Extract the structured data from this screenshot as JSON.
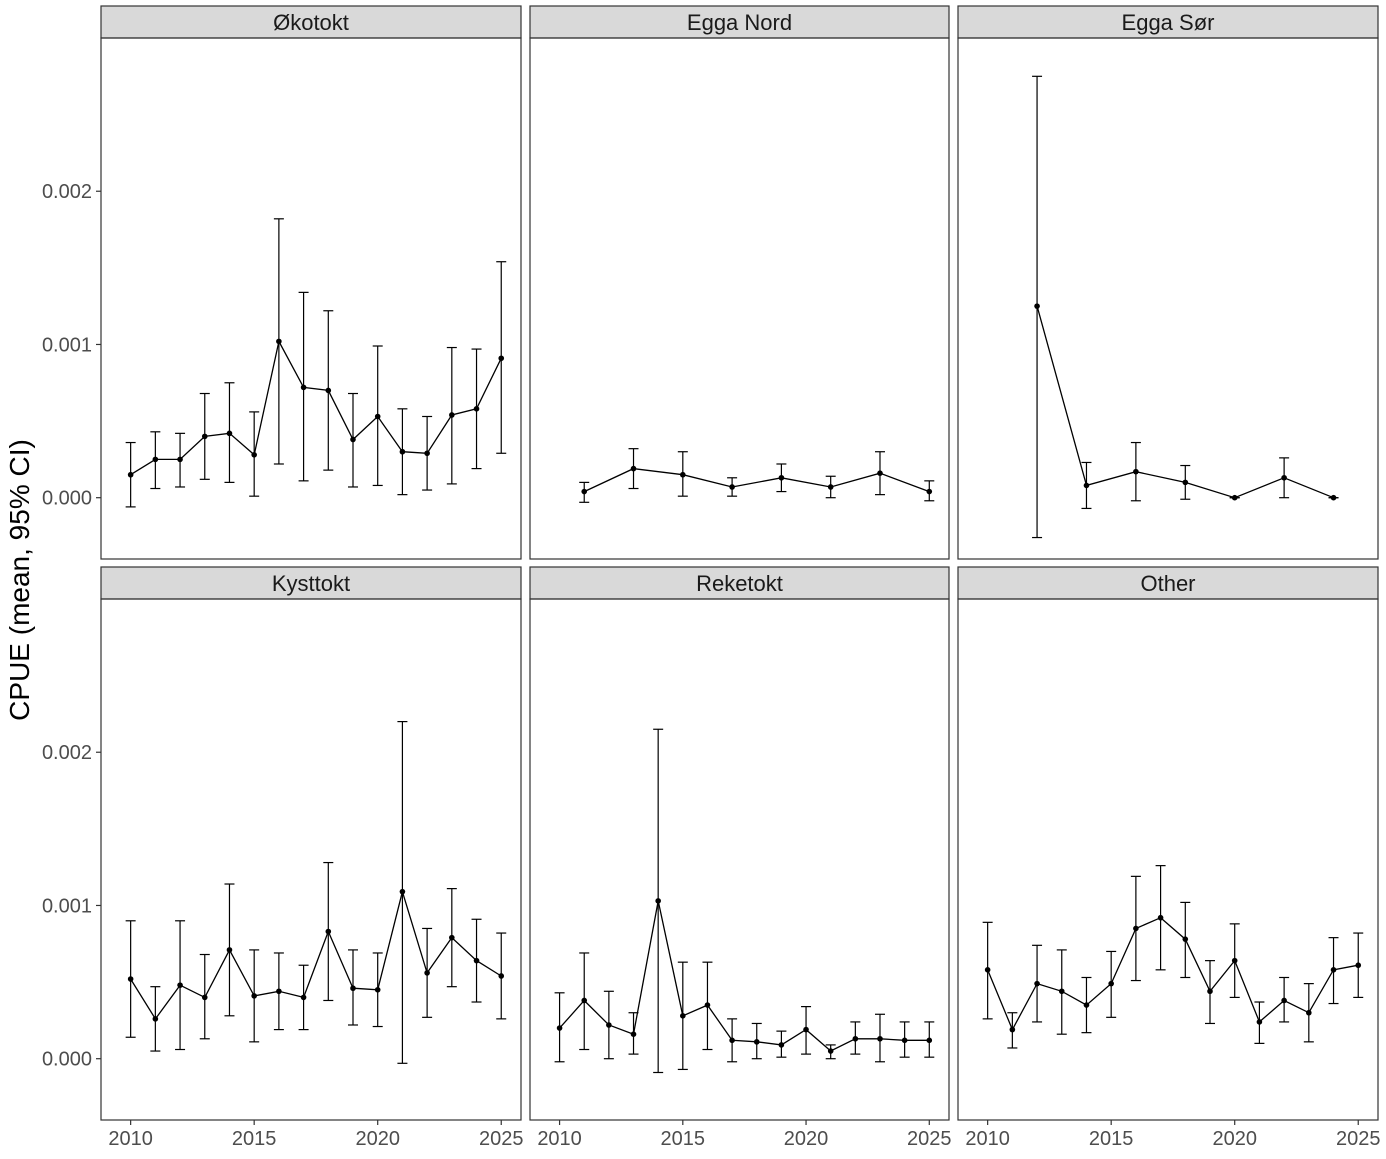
{
  "ylabel": "CPUE (mean, 95% CI)",
  "colors": {
    "strip_fill": "#d9d9d9",
    "frame": "#333333",
    "line": "#000000",
    "tick_text": "#4d4d4d"
  },
  "chart_data": {
    "type": "line",
    "layout": "facet-grid-2x3",
    "error_bars": "95% CI",
    "xlim": [
      2008.8,
      2025.8
    ],
    "ylim": [
      -0.0004,
      0.003
    ],
    "x_ticks": [
      2010,
      2015,
      2020,
      2025
    ],
    "x_tick_labels": [
      "2010",
      "2015",
      "2020",
      "2025"
    ],
    "y_ticks": [
      0,
      0.001,
      0.002
    ],
    "y_tick_labels": [
      "0.000",
      "0.001",
      "0.002"
    ],
    "grid": false,
    "panels": [
      {
        "title": "Økotokt",
        "points": [
          {
            "x": 2010,
            "y": 0.00015,
            "lo": -6e-05,
            "hi": 0.00036
          },
          {
            "x": 2011,
            "y": 0.00025,
            "lo": 6e-05,
            "hi": 0.00043
          },
          {
            "x": 2012,
            "y": 0.00025,
            "lo": 7e-05,
            "hi": 0.00042
          },
          {
            "x": 2013,
            "y": 0.0004,
            "lo": 0.00012,
            "hi": 0.00068
          },
          {
            "x": 2014,
            "y": 0.00042,
            "lo": 0.0001,
            "hi": 0.00075
          },
          {
            "x": 2015,
            "y": 0.00028,
            "lo": 1e-05,
            "hi": 0.00056
          },
          {
            "x": 2016,
            "y": 0.00102,
            "lo": 0.00022,
            "hi": 0.00182
          },
          {
            "x": 2017,
            "y": 0.00072,
            "lo": 0.00011,
            "hi": 0.00134
          },
          {
            "x": 2018,
            "y": 0.0007,
            "lo": 0.00018,
            "hi": 0.00122
          },
          {
            "x": 2019,
            "y": 0.00038,
            "lo": 7e-05,
            "hi": 0.00068
          },
          {
            "x": 2020,
            "y": 0.00053,
            "lo": 8e-05,
            "hi": 0.00099
          },
          {
            "x": 2021,
            "y": 0.0003,
            "lo": 2e-05,
            "hi": 0.00058
          },
          {
            "x": 2022,
            "y": 0.00029,
            "lo": 5e-05,
            "hi": 0.00053
          },
          {
            "x": 2023,
            "y": 0.00054,
            "lo": 9e-05,
            "hi": 0.00098
          },
          {
            "x": 2024,
            "y": 0.00058,
            "lo": 0.00019,
            "hi": 0.00097
          },
          {
            "x": 2025,
            "y": 0.00091,
            "lo": 0.00029,
            "hi": 0.00154
          }
        ]
      },
      {
        "title": "Egga Nord",
        "points": [
          {
            "x": 2011,
            "y": 4e-05,
            "lo": -3e-05,
            "hi": 0.0001
          },
          {
            "x": 2013,
            "y": 0.00019,
            "lo": 6e-05,
            "hi": 0.00032
          },
          {
            "x": 2015,
            "y": 0.00015,
            "lo": 1e-05,
            "hi": 0.0003
          },
          {
            "x": 2017,
            "y": 7e-05,
            "lo": 1e-05,
            "hi": 0.00013
          },
          {
            "x": 2019,
            "y": 0.00013,
            "lo": 4e-05,
            "hi": 0.00022
          },
          {
            "x": 2021,
            "y": 7e-05,
            "lo": 0.0,
            "hi": 0.00014
          },
          {
            "x": 2023,
            "y": 0.00016,
            "lo": 2e-05,
            "hi": 0.0003
          },
          {
            "x": 2025,
            "y": 4e-05,
            "lo": -2e-05,
            "hi": 0.00011
          }
        ]
      },
      {
        "title": "Egga Sør",
        "points": [
          {
            "x": 2012,
            "y": 0.00125,
            "lo": -0.00026,
            "hi": 0.00275
          },
          {
            "x": 2014,
            "y": 8e-05,
            "lo": -7e-05,
            "hi": 0.00023
          },
          {
            "x": 2016,
            "y": 0.00017,
            "lo": -2e-05,
            "hi": 0.00036
          },
          {
            "x": 2018,
            "y": 0.0001,
            "lo": -1e-05,
            "hi": 0.00021
          },
          {
            "x": 2020,
            "y": 0.0,
            "lo": 0.0,
            "hi": 0.0
          },
          {
            "x": 2022,
            "y": 0.00013,
            "lo": 0.0,
            "hi": 0.00026
          },
          {
            "x": 2024,
            "y": 0.0,
            "lo": 0.0,
            "hi": 0.0
          }
        ]
      },
      {
        "title": "Kysttokt",
        "points": [
          {
            "x": 2010,
            "y": 0.00052,
            "lo": 0.00014,
            "hi": 0.0009
          },
          {
            "x": 2011,
            "y": 0.00026,
            "lo": 5e-05,
            "hi": 0.00047
          },
          {
            "x": 2012,
            "y": 0.00048,
            "lo": 6e-05,
            "hi": 0.0009
          },
          {
            "x": 2013,
            "y": 0.0004,
            "lo": 0.00013,
            "hi": 0.00068
          },
          {
            "x": 2014,
            "y": 0.00071,
            "lo": 0.00028,
            "hi": 0.00114
          },
          {
            "x": 2015,
            "y": 0.00041,
            "lo": 0.00011,
            "hi": 0.00071
          },
          {
            "x": 2016,
            "y": 0.00044,
            "lo": 0.00019,
            "hi": 0.00069
          },
          {
            "x": 2017,
            "y": 0.0004,
            "lo": 0.00019,
            "hi": 0.00061
          },
          {
            "x": 2018,
            "y": 0.00083,
            "lo": 0.00038,
            "hi": 0.00128
          },
          {
            "x": 2019,
            "y": 0.00046,
            "lo": 0.00022,
            "hi": 0.00071
          },
          {
            "x": 2020,
            "y": 0.00045,
            "lo": 0.00021,
            "hi": 0.00069
          },
          {
            "x": 2021,
            "y": 0.00109,
            "lo": -3e-05,
            "hi": 0.0022
          },
          {
            "x": 2022,
            "y": 0.00056,
            "lo": 0.00027,
            "hi": 0.00085
          },
          {
            "x": 2023,
            "y": 0.00079,
            "lo": 0.00047,
            "hi": 0.00111
          },
          {
            "x": 2024,
            "y": 0.00064,
            "lo": 0.00037,
            "hi": 0.00091
          },
          {
            "x": 2025,
            "y": 0.00054,
            "lo": 0.00026,
            "hi": 0.00082
          }
        ]
      },
      {
        "title": "Reketokt",
        "points": [
          {
            "x": 2010,
            "y": 0.0002,
            "lo": -2e-05,
            "hi": 0.00043
          },
          {
            "x": 2011,
            "y": 0.00038,
            "lo": 6e-05,
            "hi": 0.00069
          },
          {
            "x": 2012,
            "y": 0.00022,
            "lo": 0.0,
            "hi": 0.00044
          },
          {
            "x": 2013,
            "y": 0.00016,
            "lo": 3e-05,
            "hi": 0.0003
          },
          {
            "x": 2014,
            "y": 0.00103,
            "lo": -9e-05,
            "hi": 0.00215
          },
          {
            "x": 2015,
            "y": 0.00028,
            "lo": -7e-05,
            "hi": 0.00063
          },
          {
            "x": 2016,
            "y": 0.00035,
            "lo": 6e-05,
            "hi": 0.00063
          },
          {
            "x": 2017,
            "y": 0.00012,
            "lo": -2e-05,
            "hi": 0.00026
          },
          {
            "x": 2018,
            "y": 0.00011,
            "lo": 0.0,
            "hi": 0.00023
          },
          {
            "x": 2019,
            "y": 9e-05,
            "lo": 1e-05,
            "hi": 0.00018
          },
          {
            "x": 2020,
            "y": 0.00019,
            "lo": 3e-05,
            "hi": 0.00034
          },
          {
            "x": 2021,
            "y": 5e-05,
            "lo": 0.0,
            "hi": 9e-05
          },
          {
            "x": 2022,
            "y": 0.00013,
            "lo": 3e-05,
            "hi": 0.00024
          },
          {
            "x": 2023,
            "y": 0.00013,
            "lo": -2e-05,
            "hi": 0.00029
          },
          {
            "x": 2024,
            "y": 0.00012,
            "lo": 1e-05,
            "hi": 0.00024
          },
          {
            "x": 2025,
            "y": 0.00012,
            "lo": 1e-05,
            "hi": 0.00024
          }
        ]
      },
      {
        "title": "Other",
        "points": [
          {
            "x": 2010,
            "y": 0.00058,
            "lo": 0.00026,
            "hi": 0.00089
          },
          {
            "x": 2011,
            "y": 0.00019,
            "lo": 7e-05,
            "hi": 0.0003
          },
          {
            "x": 2012,
            "y": 0.00049,
            "lo": 0.00024,
            "hi": 0.00074
          },
          {
            "x": 2013,
            "y": 0.00044,
            "lo": 0.00016,
            "hi": 0.00071
          },
          {
            "x": 2014,
            "y": 0.00035,
            "lo": 0.00017,
            "hi": 0.00053
          },
          {
            "x": 2015,
            "y": 0.00049,
            "lo": 0.00027,
            "hi": 0.0007
          },
          {
            "x": 2016,
            "y": 0.00085,
            "lo": 0.00051,
            "hi": 0.00119
          },
          {
            "x": 2017,
            "y": 0.00092,
            "lo": 0.00058,
            "hi": 0.00126
          },
          {
            "x": 2018,
            "y": 0.00078,
            "lo": 0.00053,
            "hi": 0.00102
          },
          {
            "x": 2019,
            "y": 0.00044,
            "lo": 0.00023,
            "hi": 0.00064
          },
          {
            "x": 2020,
            "y": 0.00064,
            "lo": 0.0004,
            "hi": 0.00088
          },
          {
            "x": 2021,
            "y": 0.00024,
            "lo": 0.0001,
            "hi": 0.00037
          },
          {
            "x": 2022,
            "y": 0.00038,
            "lo": 0.00024,
            "hi": 0.00053
          },
          {
            "x": 2023,
            "y": 0.0003,
            "lo": 0.00011,
            "hi": 0.00049
          },
          {
            "x": 2024,
            "y": 0.00058,
            "lo": 0.00036,
            "hi": 0.00079
          },
          {
            "x": 2025,
            "y": 0.00061,
            "lo": 0.0004,
            "hi": 0.00082
          }
        ]
      }
    ]
  }
}
